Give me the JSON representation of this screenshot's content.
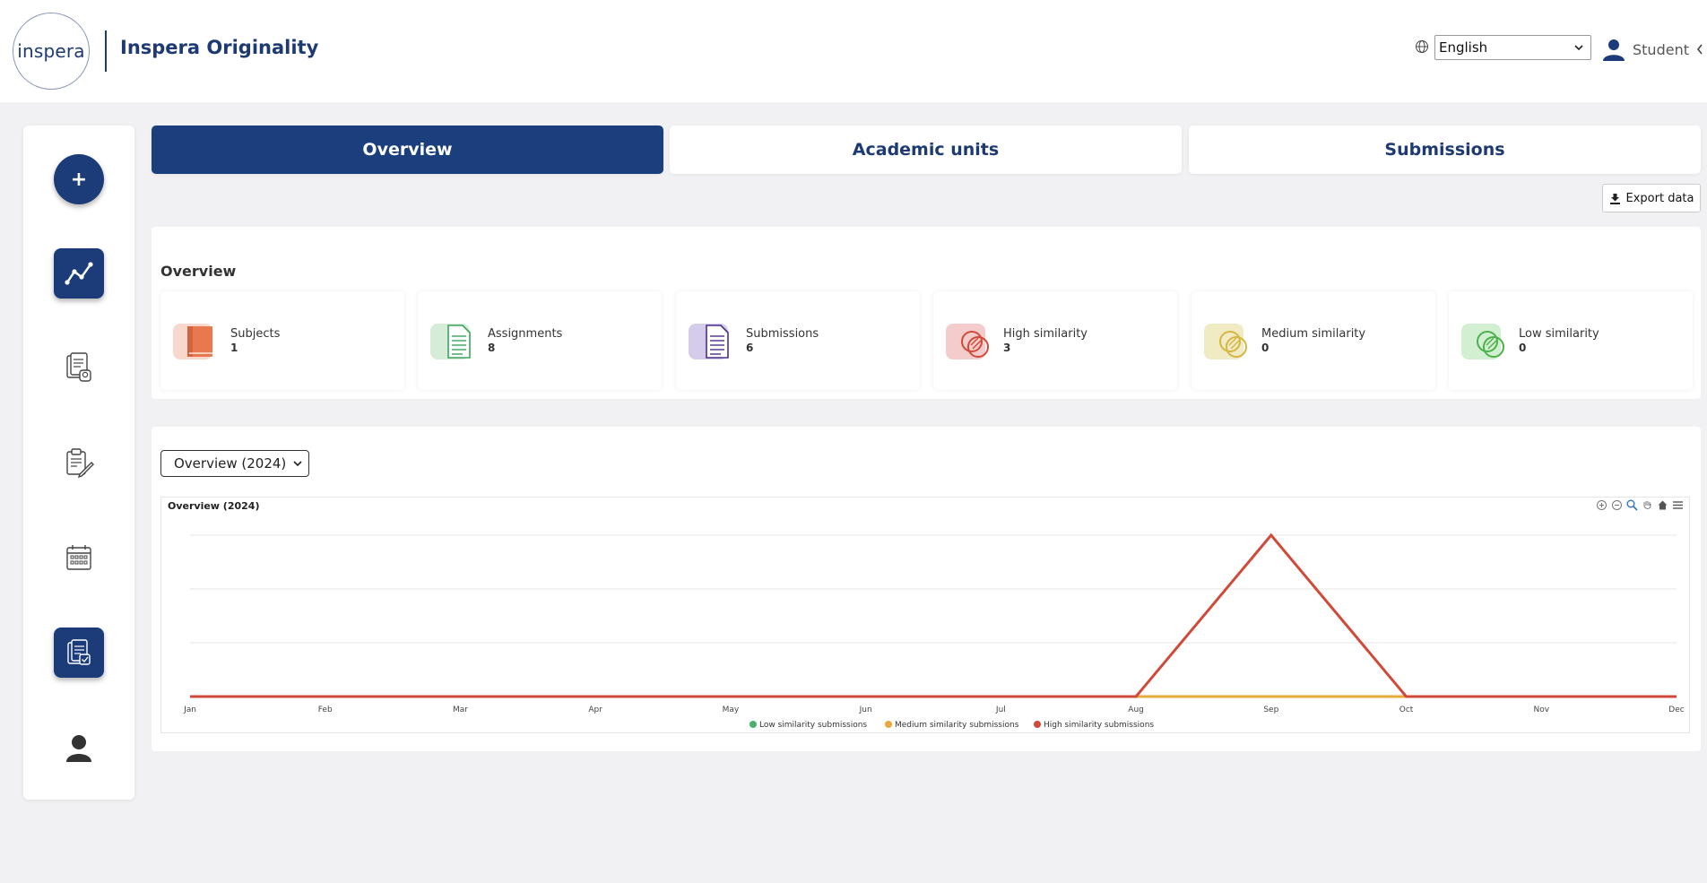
{
  "header": {
    "logo_text": "inspera",
    "app_title": "Inspera Originality",
    "language": "English",
    "user_role": "Student"
  },
  "tabs": [
    {
      "label": "Overview",
      "active": true
    },
    {
      "label": "Academic units",
      "active": false
    },
    {
      "label": "Submissions",
      "active": false
    }
  ],
  "export_label": "Export data",
  "overview": {
    "title": "Overview",
    "stats": [
      {
        "label": "Subjects",
        "value": "1",
        "icon": "book-icon",
        "color": "#e8794f"
      },
      {
        "label": "Assignments",
        "value": "8",
        "icon": "document-icon",
        "color": "#3aa35a"
      },
      {
        "label": "Submissions",
        "value": "6",
        "icon": "document-icon",
        "color": "#4c2d8a"
      },
      {
        "label": "High similarity",
        "value": "3",
        "icon": "similarity-icon",
        "color": "#d04a3a"
      },
      {
        "label": "Medium similarity",
        "value": "0",
        "icon": "similarity-icon",
        "color": "#d6b640"
      },
      {
        "label": "Low similarity",
        "value": "0",
        "icon": "similarity-icon",
        "color": "#4cb04c"
      }
    ]
  },
  "chart_select": "Overview (2024)",
  "chart_data": {
    "type": "line",
    "title": "Overview (2024)",
    "categories": [
      "Jan",
      "Feb",
      "Mar",
      "Apr",
      "May",
      "Jun",
      "Jul",
      "Aug",
      "Sep",
      "Oct",
      "Nov",
      "Dec"
    ],
    "ylim": [
      0,
      3
    ],
    "grid": true,
    "legend": "bottom",
    "series": [
      {
        "name": "Low similarity submissions",
        "color": "#4caf6e",
        "values": [
          0,
          0,
          0,
          0,
          0,
          0,
          0,
          0,
          0,
          0,
          0,
          0
        ]
      },
      {
        "name": "Medium similarity submissions",
        "color": "#e6a93a",
        "values": [
          0,
          0,
          0,
          0,
          0,
          0,
          0,
          0,
          0,
          0,
          0,
          0
        ]
      },
      {
        "name": "High similarity submissions",
        "color": "#d04a3a",
        "values": [
          0,
          0,
          0,
          0,
          0,
          0,
          0,
          0,
          3,
          0,
          0,
          0
        ]
      }
    ]
  }
}
